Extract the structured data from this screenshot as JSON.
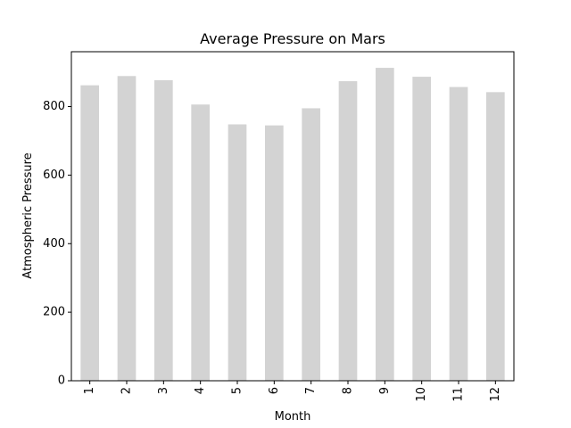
{
  "chart_data": {
    "type": "bar",
    "title": "Average Pressure on Mars",
    "xlabel": "Month",
    "ylabel": "Atmospheric Pressure",
    "categories": [
      "1",
      "2",
      "3",
      "4",
      "5",
      "6",
      "7",
      "8",
      "9",
      "10",
      "11",
      "12"
    ],
    "values": [
      862,
      889,
      877,
      806,
      748,
      745,
      795,
      874,
      913,
      887,
      857,
      842
    ],
    "ylim": [
      0,
      960
    ],
    "yticks": [
      0,
      200,
      400,
      600,
      800
    ],
    "bar_color": "#d3d3d3",
    "grid": false,
    "legend": false
  }
}
